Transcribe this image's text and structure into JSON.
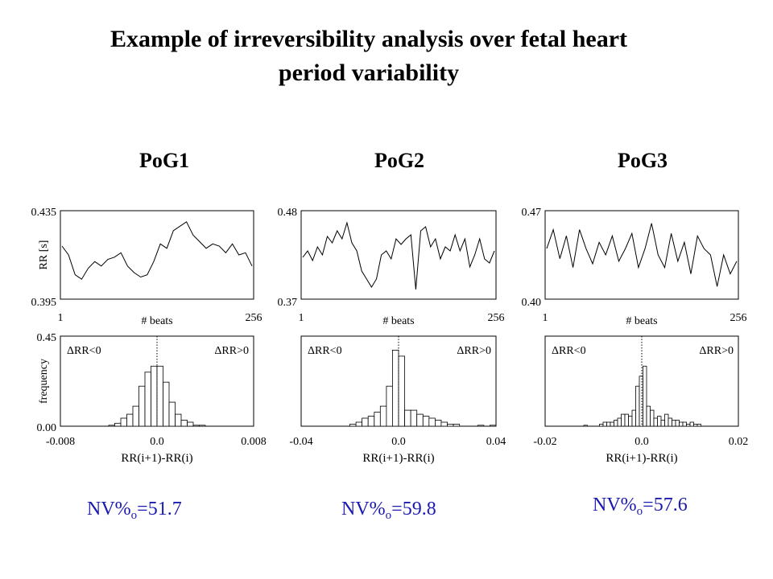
{
  "title_line1": "Example of irreversibility analysis over fetal heart",
  "title_line2": "period variability",
  "chart_data": [
    {
      "type": "line",
      "panel": "PoG1",
      "title": "PoG1",
      "xlabel": "# beats",
      "ylabel": "RR [s]",
      "xlim": [
        1,
        256
      ],
      "ylim": [
        0.395,
        0.435
      ],
      "x_tick_labels": [
        "1",
        "256"
      ],
      "y_tick_labels": [
        "0.435",
        "0.395"
      ],
      "series": [
        {
          "values": [
            0.419,
            0.415,
            0.406,
            0.404,
            0.409,
            0.412,
            0.41,
            0.413,
            0.414,
            0.416,
            0.41,
            0.407,
            0.405,
            0.406,
            0.412,
            0.42,
            0.418,
            0.426,
            0.428,
            0.43,
            0.424,
            0.421,
            0.418,
            0.42,
            0.419,
            0.416,
            0.42,
            0.415,
            0.416,
            0.41
          ]
        }
      ]
    },
    {
      "type": "bar",
      "panel": "PoG1",
      "xlabel": "RR(i+1)-RR(i)",
      "ylabel": "frequency",
      "xlim": [
        -0.008,
        0.008
      ],
      "ylim": [
        0.0,
        0.45
      ],
      "x_tick_labels": [
        "-0.008",
        "0.0",
        "0.008"
      ],
      "y_tick_labels": [
        "0.45",
        "0.00"
      ],
      "annotations": [
        "ΔRR<0",
        "ΔRR>0"
      ],
      "bin_width": 0.0005,
      "bin_starts": [
        -0.004,
        -0.0035,
        -0.003,
        -0.0025,
        -0.002,
        -0.0015,
        -0.001,
        -0.0005,
        0.0,
        0.0005,
        0.001,
        0.0015,
        0.002,
        0.0025,
        0.003,
        0.0035
      ],
      "values": [
        0.005,
        0.015,
        0.04,
        0.06,
        0.1,
        0.2,
        0.27,
        0.3,
        0.3,
        0.22,
        0.12,
        0.06,
        0.03,
        0.02,
        0.005,
        0.005
      ]
    },
    {
      "type": "line",
      "panel": "PoG2",
      "title": "PoG2",
      "xlabel": "# beats",
      "ylabel": "",
      "xlim": [
        1,
        256
      ],
      "ylim": [
        0.37,
        0.48
      ],
      "x_tick_labels": [
        "1",
        "256"
      ],
      "y_tick_labels": [
        "0.48",
        "0.37"
      ],
      "series": [
        {
          "values": [
            0.422,
            0.43,
            0.418,
            0.435,
            0.425,
            0.448,
            0.44,
            0.455,
            0.445,
            0.465,
            0.44,
            0.43,
            0.405,
            0.395,
            0.385,
            0.395,
            0.425,
            0.43,
            0.42,
            0.445,
            0.438,
            0.445,
            0.45,
            0.382,
            0.455,
            0.46,
            0.435,
            0.445,
            0.42,
            0.435,
            0.43,
            0.45,
            0.43,
            0.445,
            0.41,
            0.425,
            0.445,
            0.42,
            0.415,
            0.43
          ]
        }
      ]
    },
    {
      "type": "bar",
      "panel": "PoG2",
      "xlabel": "RR(i+1)-RR(i)",
      "ylabel": "",
      "xlim": [
        -0.04,
        0.04
      ],
      "ylim": [
        0.0,
        0.45
      ],
      "x_tick_labels": [
        "-0.04",
        "0.0",
        "0.04"
      ],
      "y_tick_labels": [],
      "annotations": [
        "ΔRR<0",
        "ΔRR>0"
      ],
      "bin_width": 0.0025,
      "bin_starts": [
        -0.02,
        -0.0175,
        -0.015,
        -0.0125,
        -0.01,
        -0.0075,
        -0.005,
        -0.0025,
        0.0,
        0.0025,
        0.005,
        0.0075,
        0.01,
        0.0125,
        0.015,
        0.0175,
        0.02,
        0.0225,
        0.0325,
        0.0375
      ],
      "values": [
        0.01,
        0.02,
        0.04,
        0.05,
        0.07,
        0.1,
        0.2,
        0.38,
        0.35,
        0.08,
        0.08,
        0.06,
        0.05,
        0.04,
        0.03,
        0.02,
        0.01,
        0.01,
        0.005,
        0.005
      ]
    },
    {
      "type": "line",
      "panel": "PoG3",
      "title": "PoG3",
      "xlabel": "# beats",
      "ylabel": "",
      "xlim": [
        1,
        256
      ],
      "ylim": [
        0.4,
        0.47
      ],
      "x_tick_labels": [
        "1",
        "256"
      ],
      "y_tick_labels": [
        "0.47",
        "0.40"
      ],
      "series": [
        {
          "values": [
            0.44,
            0.455,
            0.432,
            0.45,
            0.425,
            0.455,
            0.44,
            0.428,
            0.445,
            0.435,
            0.45,
            0.43,
            0.44,
            0.452,
            0.425,
            0.44,
            0.46,
            0.435,
            0.425,
            0.452,
            0.43,
            0.445,
            0.42,
            0.45,
            0.44,
            0.435,
            0.41,
            0.435,
            0.42,
            0.43
          ]
        }
      ]
    },
    {
      "type": "bar",
      "panel": "PoG3",
      "xlabel": "RR(i+1)-RR(i)",
      "ylabel": "",
      "xlim": [
        -0.02,
        0.02
      ],
      "ylim": [
        0.0,
        0.45
      ],
      "x_tick_labels": [
        "-0.02",
        "0.0",
        "0.02"
      ],
      "y_tick_labels": [],
      "annotations": [
        "ΔRR<0",
        "ΔRR>0"
      ],
      "bin_width": 0.00075,
      "bin_starts": [
        -0.012,
        -0.00875,
        -0.008,
        -0.00725,
        -0.0065,
        -0.00575,
        -0.005,
        -0.00425,
        -0.0035,
        -0.00275,
        -0.002,
        -0.00125,
        -0.0005,
        0.00025,
        0.001,
        0.00175,
        0.0025,
        0.00325,
        0.004,
        0.00475,
        0.0055,
        0.00625,
        0.007,
        0.00775,
        0.0085,
        0.00925,
        0.01,
        0.01075,
        0.0115
      ],
      "values": [
        0.005,
        0.01,
        0.02,
        0.02,
        0.02,
        0.03,
        0.04,
        0.06,
        0.06,
        0.05,
        0.08,
        0.2,
        0.25,
        0.3,
        0.1,
        0.08,
        0.04,
        0.05,
        0.03,
        0.06,
        0.04,
        0.03,
        0.03,
        0.02,
        0.02,
        0.01,
        0.02,
        0.01,
        0.01
      ]
    }
  ],
  "nv_values": [
    {
      "prefix": "NV%",
      "sub": "o",
      "value": "=51.7"
    },
    {
      "prefix": "NV%",
      "sub": "o",
      "value": "=59.8"
    },
    {
      "prefix": "NV%",
      "sub": "o",
      "value": "=57.6"
    }
  ],
  "colors": {
    "text": "#000000",
    "nv_text": "#1a1ab0",
    "axis": "#000000"
  }
}
